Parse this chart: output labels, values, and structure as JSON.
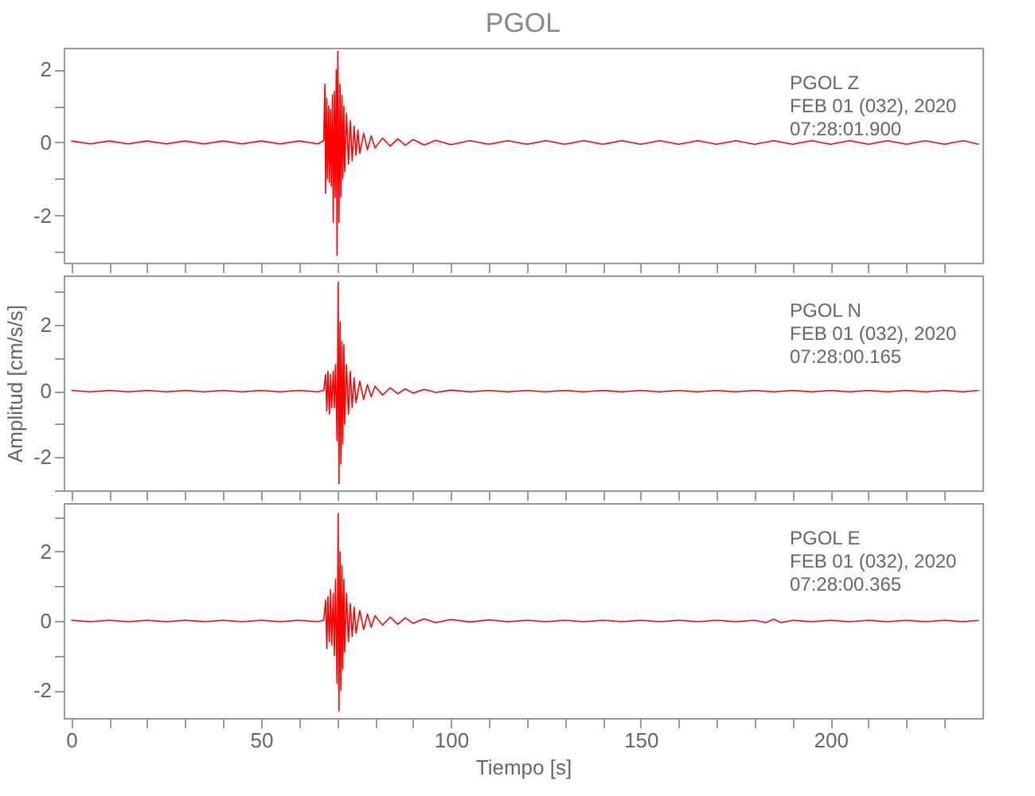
{
  "chart_data": [
    {
      "type": "line",
      "title": "PGOL",
      "annotations": [
        "PGOL Z",
        "FEB 01 (032), 2020",
        "07:28:01.900"
      ],
      "tick_labels": "y",
      "line_style": "solid",
      "marker": "none",
      "grid": false,
      "xlim": [
        -2,
        240
      ],
      "xticks": [
        0,
        {
          "value": 10,
          "label": null
        },
        {
          "value": 20,
          "label": null
        },
        {
          "value": 30,
          "label": null
        },
        {
          "value": 40,
          "label": null
        },
        50,
        {
          "value": 60,
          "label": null
        },
        {
          "value": 70,
          "label": null
        },
        {
          "value": 80,
          "label": null
        },
        {
          "value": 90,
          "label": null
        },
        100,
        {
          "value": 110,
          "label": null
        },
        {
          "value": 120,
          "label": null
        },
        {
          "value": 130,
          "label": null
        },
        {
          "value": 140,
          "label": null
        },
        150,
        {
          "value": 160,
          "label": null
        },
        {
          "value": 170,
          "label": null
        },
        {
          "value": 180,
          "label": null
        },
        {
          "value": 190,
          "label": null
        },
        200,
        {
          "value": 210,
          "label": null
        },
        {
          "value": 220,
          "label": null
        },
        {
          "value": 230,
          "label": null
        }
      ],
      "ylim": [
        -3.3,
        2.6
      ],
      "yticks": [
        {
          "value": -3,
          "label": null
        },
        -2,
        {
          "value": -1,
          "label": null
        },
        0,
        {
          "value": 1,
          "label": null
        },
        2
      ],
      "series": [
        {
          "color": "#ff0000",
          "x": [
            0,
            5,
            10,
            15,
            20,
            25,
            30,
            35,
            40,
            45,
            50,
            55,
            60,
            65,
            66.5,
            66.8,
            67.0,
            67.3,
            67.5,
            67.8,
            68.0,
            68.3,
            68.5,
            68.8,
            69.0,
            69.3,
            69.5,
            69.8,
            70.0,
            70.2,
            70.5,
            70.8,
            71.0,
            71.3,
            71.5,
            71.8,
            72.0,
            72.5,
            73.0,
            73.5,
            74,
            74.5,
            75,
            75.5,
            76,
            77,
            78,
            79,
            80,
            82,
            84,
            86,
            88,
            90,
            93,
            96,
            100,
            105,
            110,
            115,
            120,
            125,
            130,
            135,
            140,
            145,
            150,
            155,
            160,
            165,
            170,
            175,
            180,
            185,
            190,
            195,
            200,
            205,
            210,
            215,
            220,
            225,
            230,
            235,
            239
          ],
          "values": [
            0.04,
            -0.04,
            0.04,
            -0.04,
            0.04,
            -0.04,
            0.04,
            -0.04,
            0.04,
            -0.04,
            0.04,
            -0.04,
            0.04,
            -0.04,
            0.05,
            1.6,
            -1.4,
            1.2,
            -1.0,
            1.0,
            -1.1,
            0.9,
            -1.2,
            1.3,
            -2.2,
            1.4,
            -1.5,
            2.0,
            -3.1,
            2.5,
            -2.2,
            1.6,
            -1.5,
            1.3,
            -1.0,
            1.0,
            -0.8,
            0.8,
            -0.6,
            0.6,
            -0.5,
            0.45,
            -0.35,
            0.35,
            -0.3,
            0.25,
            -0.2,
            0.18,
            -0.15,
            0.12,
            -0.1,
            0.1,
            -0.08,
            0.08,
            -0.07,
            0.06,
            -0.06,
            0.05,
            -0.05,
            0.05,
            -0.05,
            0.05,
            -0.05,
            0.05,
            -0.05,
            0.05,
            -0.05,
            0.05,
            -0.05,
            0.05,
            -0.05,
            0.05,
            -0.05,
            0.05,
            -0.05,
            0.05,
            -0.05,
            0.05,
            -0.05,
            0.05,
            -0.05,
            0.05,
            -0.05,
            0.05,
            -0.05
          ]
        }
      ]
    },
    {
      "type": "line",
      "ylabel": "Amplitud [cm/s/s]",
      "annotations": [
        "PGOL N",
        "FEB 01 (032), 2020",
        "07:28:00.165"
      ],
      "tick_labels": "y",
      "line_style": "solid",
      "marker": "none",
      "grid": false,
      "xlim": [
        -2,
        240
      ],
      "xticks": [
        0,
        {
          "value": 10,
          "label": null
        },
        {
          "value": 20,
          "label": null
        },
        {
          "value": 30,
          "label": null
        },
        {
          "value": 40,
          "label": null
        },
        50,
        {
          "value": 60,
          "label": null
        },
        {
          "value": 70,
          "label": null
        },
        {
          "value": 80,
          "label": null
        },
        {
          "value": 90,
          "label": null
        },
        100,
        {
          "value": 110,
          "label": null
        },
        {
          "value": 120,
          "label": null
        },
        {
          "value": 130,
          "label": null
        },
        {
          "value": 140,
          "label": null
        },
        150,
        {
          "value": 160,
          "label": null
        },
        {
          "value": 170,
          "label": null
        },
        {
          "value": 180,
          "label": null
        },
        {
          "value": 190,
          "label": null
        },
        200,
        {
          "value": 210,
          "label": null
        },
        {
          "value": 220,
          "label": null
        },
        {
          "value": 230,
          "label": null
        }
      ],
      "ylim": [
        -3,
        3.5
      ],
      "yticks": [
        {
          "value": -3,
          "label": null
        },
        -2,
        {
          "value": -1,
          "label": null
        },
        0,
        {
          "value": 1,
          "label": null
        },
        2,
        {
          "value": 3,
          "label": null
        }
      ],
      "series": [
        {
          "color": "#ff0000",
          "x": [
            0,
            5,
            10,
            15,
            20,
            25,
            30,
            35,
            40,
            45,
            50,
            55,
            60,
            65,
            66.5,
            67,
            67.3,
            67.6,
            68,
            68.3,
            68.6,
            69,
            69.3,
            69.6,
            70,
            70.3,
            70.5,
            70.8,
            71,
            71.3,
            71.5,
            71.8,
            72,
            72.5,
            73,
            73.5,
            74,
            74.5,
            75,
            76,
            77,
            78,
            79,
            80,
            82,
            84,
            86,
            88,
            90,
            93,
            96,
            100,
            105,
            110,
            115,
            120,
            125,
            130,
            135,
            140,
            145,
            150,
            155,
            160,
            165,
            170,
            175,
            180,
            185,
            190,
            195,
            200,
            205,
            210,
            215,
            220,
            225,
            230,
            235,
            239
          ],
          "values": [
            0.02,
            -0.02,
            0.02,
            -0.02,
            0.02,
            -0.02,
            0.02,
            -0.02,
            0.02,
            -0.02,
            0.02,
            -0.02,
            0.02,
            -0.02,
            0.02,
            0.5,
            -0.6,
            0.6,
            -0.7,
            0.5,
            -0.5,
            0.6,
            -0.5,
            0.8,
            -1.5,
            3.3,
            -2.8,
            2.1,
            -2.2,
            1.5,
            -1.6,
            1.4,
            -1.0,
            0.8,
            -0.7,
            0.6,
            -0.5,
            0.4,
            -0.35,
            0.3,
            -0.25,
            0.2,
            -0.17,
            0.15,
            -0.12,
            0.1,
            -0.08,
            0.07,
            -0.06,
            0.05,
            -0.04,
            0.03,
            -0.02,
            0.02,
            -0.02,
            0.02,
            -0.02,
            0.02,
            -0.02,
            0.02,
            -0.02,
            0.02,
            -0.02,
            0.02,
            -0.02,
            0.02,
            -0.02,
            0.02,
            -0.02,
            0.02,
            -0.02,
            0.02,
            -0.02,
            0.02,
            -0.02,
            0.02,
            -0.02,
            0.02,
            -0.02,
            0.02
          ]
        }
      ]
    },
    {
      "type": "line",
      "xlabel": "Tiempo [s]",
      "annotations": [
        "PGOL E",
        "FEB 01 (032), 2020",
        "07:28:00.365"
      ],
      "line_style": "solid",
      "marker": "none",
      "grid": false,
      "xlim": [
        -2,
        240
      ],
      "xticks": [
        0,
        {
          "value": 10,
          "label": null
        },
        {
          "value": 20,
          "label": null
        },
        {
          "value": 30,
          "label": null
        },
        {
          "value": 40,
          "label": null
        },
        50,
        {
          "value": 60,
          "label": null
        },
        {
          "value": 70,
          "label": null
        },
        {
          "value": 80,
          "label": null
        },
        {
          "value": 90,
          "label": null
        },
        100,
        {
          "value": 110,
          "label": null
        },
        {
          "value": 120,
          "label": null
        },
        {
          "value": 130,
          "label": null
        },
        {
          "value": 140,
          "label": null
        },
        150,
        {
          "value": 160,
          "label": null
        },
        {
          "value": 170,
          "label": null
        },
        {
          "value": 180,
          "label": null
        },
        {
          "value": 190,
          "label": null
        },
        200,
        {
          "value": 210,
          "label": null
        },
        {
          "value": 220,
          "label": null
        },
        {
          "value": 230,
          "label": null
        }
      ],
      "ylim": [
        -2.8,
        3.4
      ],
      "yticks": [
        -2,
        {
          "value": -1,
          "label": null
        },
        0,
        {
          "value": 1,
          "label": null
        },
        2,
        {
          "value": 3,
          "label": null
        }
      ],
      "series": [
        {
          "color": "#ff0000",
          "x": [
            0,
            5,
            10,
            15,
            20,
            25,
            30,
            35,
            40,
            45,
            50,
            55,
            60,
            65,
            66.5,
            67,
            67.3,
            67.6,
            68,
            68.3,
            68.6,
            69,
            69.3,
            69.6,
            70,
            70.3,
            70.5,
            70.8,
            71,
            71.3,
            71.5,
            71.8,
            72,
            72.5,
            73,
            73.5,
            74,
            74.5,
            75,
            76,
            77,
            78,
            79,
            80,
            82,
            84,
            86,
            88,
            90,
            93,
            96,
            100,
            105,
            110,
            115,
            120,
            125,
            130,
            135,
            140,
            145,
            150,
            155,
            160,
            165,
            170,
            175,
            180,
            183,
            185,
            187,
            190,
            195,
            200,
            205,
            210,
            215,
            220,
            225,
            230,
            235,
            239
          ],
          "values": [
            0.02,
            -0.02,
            0.02,
            -0.02,
            0.02,
            -0.02,
            0.02,
            -0.02,
            0.02,
            -0.02,
            0.02,
            -0.02,
            0.02,
            -0.02,
            0.02,
            0.6,
            -0.8,
            0.7,
            -0.6,
            0.9,
            -0.7,
            0.8,
            -1.0,
            1.2,
            -1.8,
            3.1,
            -2.6,
            2.0,
            -2.0,
            1.6,
            -1.4,
            1.2,
            -0.9,
            0.8,
            -0.6,
            0.5,
            -0.45,
            0.4,
            -0.35,
            0.3,
            -0.25,
            0.2,
            -0.18,
            0.15,
            -0.12,
            0.11,
            -0.1,
            0.09,
            -0.07,
            0.06,
            -0.05,
            0.04,
            -0.03,
            0.03,
            -0.02,
            0.02,
            -0.02,
            0.02,
            -0.02,
            0.02,
            -0.02,
            0.02,
            -0.02,
            0.02,
            -0.02,
            0.02,
            -0.02,
            0.02,
            -0.05,
            0.05,
            -0.05,
            0.02,
            -0.02,
            0.02,
            -0.02,
            0.02,
            -0.02,
            0.02,
            -0.02,
            0.02,
            -0.02,
            0.02
          ]
        }
      ]
    }
  ]
}
